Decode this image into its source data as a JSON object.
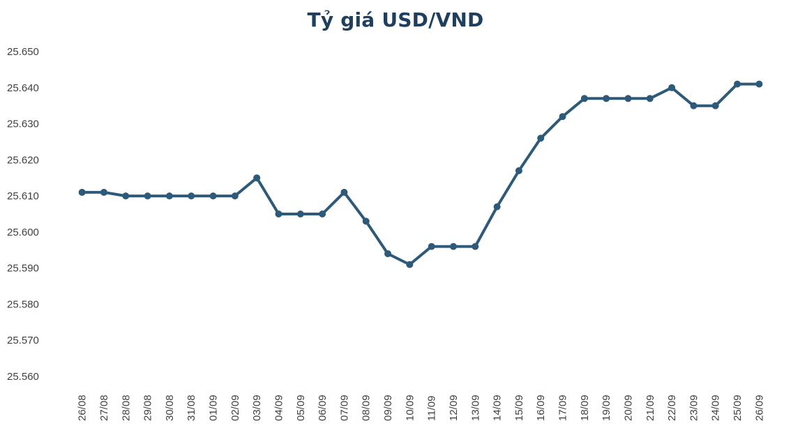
{
  "chart_data": {
    "type": "line",
    "title": "Tỷ giá USD/VND",
    "xlabel": "",
    "ylabel": "",
    "ylim": [
      25560,
      25650
    ],
    "y_ticks": [
      25560,
      25570,
      25580,
      25590,
      25600,
      25610,
      25620,
      25630,
      25640,
      25650
    ],
    "y_tick_labels": [
      "25.560",
      "25.570",
      "25.580",
      "25.590",
      "25.600",
      "25.610",
      "25.620",
      "25.630",
      "25.640",
      "25.650"
    ],
    "grid": false,
    "legend": "none",
    "categories": [
      "26/08",
      "27/08",
      "28/08",
      "29/08",
      "30/08",
      "31/08",
      "01/09",
      "02/09",
      "03/09",
      "04/09",
      "05/09",
      "06/09",
      "07/09",
      "08/09",
      "09/09",
      "10/09",
      "11/09",
      "12/09",
      "13/09",
      "14/09",
      "15/09",
      "16/09",
      "17/09",
      "18/09",
      "19/09",
      "20/09",
      "21/09",
      "22/09",
      "23/09",
      "24/09",
      "25/09",
      "26/09"
    ],
    "series": [
      {
        "values": [
          25611,
          25611,
          25610,
          25610,
          25610,
          25610,
          25610,
          25610,
          25615,
          25605,
          25605,
          25605,
          25611,
          25603,
          25594,
          25591,
          25596,
          25596,
          25596,
          25607,
          25617,
          25626,
          25632,
          25637,
          25637,
          25637,
          25637,
          25640,
          25635,
          25635,
          25641,
          25641
        ],
        "color": "#2e5a7a"
      }
    ]
  }
}
